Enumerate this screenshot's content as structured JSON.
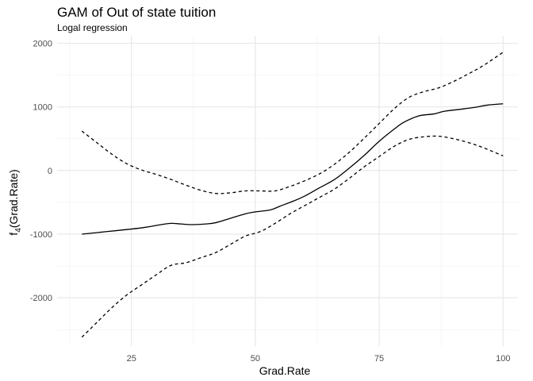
{
  "chart_data": {
    "type": "line",
    "title": "GAM of Out of state tuition",
    "subtitle": "Logal regression",
    "xlabel": "Grad.Rate",
    "ylabel_main": "f",
    "ylabel_sub": "4",
    "ylabel_rest": "(Grad.Rate)",
    "xlim": [
      10,
      103
    ],
    "ylim": [
      -2760,
      2120
    ],
    "x_ticks": [
      25,
      50,
      75,
      100
    ],
    "y_ticks": [
      -2000,
      -1000,
      0,
      1000,
      2000
    ],
    "x_tick_labels": [
      "25",
      "50",
      "75",
      "100"
    ],
    "y_tick_labels": [
      "-2000",
      "-1000",
      "0",
      "1000",
      "2000"
    ],
    "grid": true,
    "series": [
      {
        "style": "solid",
        "color": "#000000",
        "x": [
          15,
          20,
          25,
          28,
          31,
          33,
          35,
          37,
          40,
          42,
          45,
          48,
          50,
          53,
          55,
          58,
          60,
          63,
          66,
          69,
          72,
          75,
          78,
          80,
          83,
          86,
          88,
          91,
          94,
          97,
          100
        ],
        "y": [
          -1000,
          -960,
          -920,
          -890,
          -850,
          -830,
          -840,
          -850,
          -840,
          -820,
          -750,
          -680,
          -650,
          -620,
          -560,
          -470,
          -400,
          -270,
          -140,
          40,
          240,
          460,
          650,
          760,
          860,
          890,
          930,
          960,
          990,
          1030,
          1050
        ]
      },
      {
        "style": "dashed",
        "color": "#000000",
        "x": [
          15,
          18,
          21,
          24,
          27,
          30,
          33,
          36,
          39,
          42,
          45,
          48,
          51,
          54,
          57,
          60,
          63,
          66,
          69,
          72,
          75,
          78,
          81,
          84,
          87,
          90,
          93,
          96,
          100
        ],
        "y": [
          620,
          440,
          260,
          110,
          10,
          -60,
          -140,
          -230,
          -310,
          -360,
          -350,
          -320,
          -320,
          -320,
          -250,
          -160,
          -50,
          100,
          290,
          510,
          740,
          970,
          1150,
          1240,
          1300,
          1400,
          1520,
          1650,
          1860
        ]
      },
      {
        "style": "dashed",
        "color": "#000000",
        "x": [
          15,
          18,
          21,
          24,
          27,
          30,
          33,
          36,
          39,
          42,
          45,
          48,
          51,
          54,
          57,
          60,
          63,
          66,
          69,
          72,
          75,
          78,
          81,
          84,
          87,
          90,
          93,
          96,
          100
        ],
        "y": [
          -2620,
          -2390,
          -2160,
          -1960,
          -1800,
          -1640,
          -1490,
          -1450,
          -1370,
          -1290,
          -1160,
          -1030,
          -960,
          -830,
          -680,
          -550,
          -420,
          -290,
          -120,
          60,
          220,
          380,
          490,
          530,
          540,
          500,
          440,
          360,
          230
        ]
      }
    ]
  }
}
